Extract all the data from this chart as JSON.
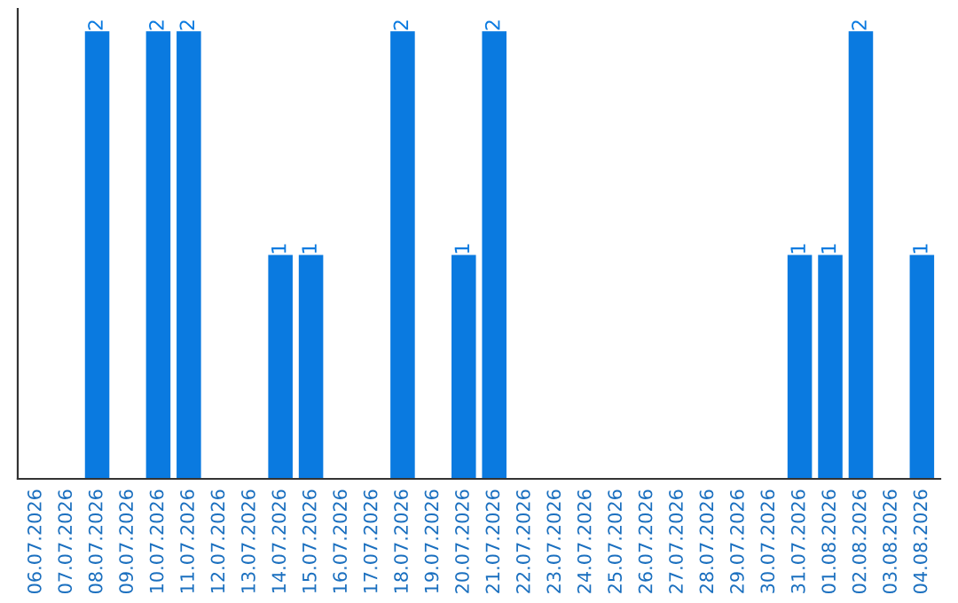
{
  "chart_data": {
    "type": "bar",
    "categories": [
      "06.07.2026",
      "07.07.2026",
      "08.07.2026",
      "09.07.2026",
      "10.07.2026",
      "11.07.2026",
      "12.07.2026",
      "13.07.2026",
      "14.07.2026",
      "15.07.2026",
      "16.07.2026",
      "17.07.2026",
      "18.07.2026",
      "19.07.2026",
      "20.07.2026",
      "21.07.2026",
      "22.07.2026",
      "23.07.2026",
      "24.07.2026",
      "25.07.2026",
      "26.07.2026",
      "27.07.2026",
      "28.07.2026",
      "29.07.2026",
      "30.07.2026",
      "31.07.2026",
      "01.08.2026",
      "02.08.2026",
      "03.08.2026",
      "04.08.2026"
    ],
    "values": [
      0,
      0,
      2,
      0,
      2,
      2,
      0,
      0,
      1,
      1,
      0,
      0,
      2,
      0,
      1,
      2,
      0,
      0,
      0,
      0,
      0,
      0,
      0,
      0,
      0,
      1,
      1,
      2,
      0,
      1
    ],
    "value_labels": [
      null,
      null,
      "2",
      null,
      "2",
      "2",
      null,
      null,
      "1",
      "1",
      null,
      null,
      "2",
      null,
      "1",
      "2",
      null,
      null,
      null,
      null,
      null,
      null,
      null,
      null,
      null,
      "1",
      "1",
      "2",
      null,
      "1"
    ],
    "color": "#0a7ae0",
    "tick_labels": "x",
    "grid": false,
    "legend": false
  }
}
